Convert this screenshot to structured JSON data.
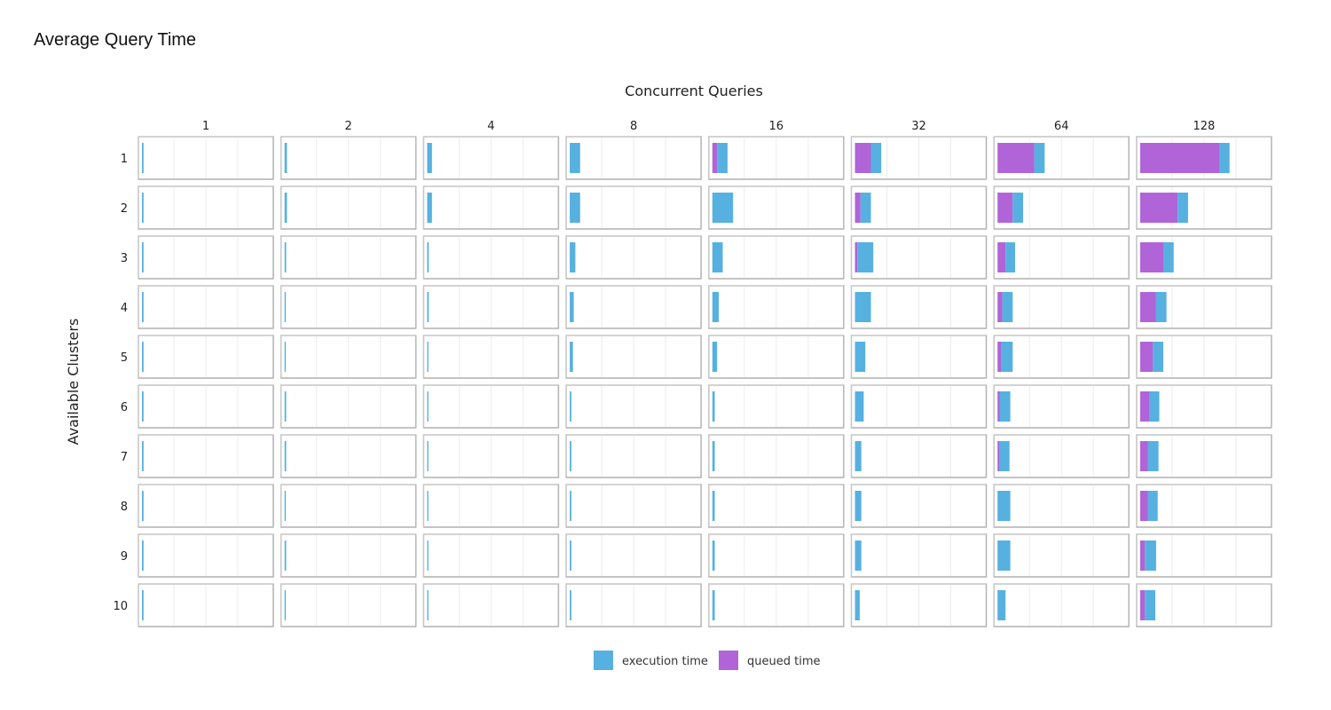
{
  "page": {
    "title": "Average Query Time"
  },
  "chart_data": {
    "type": "bar",
    "orientation": "horizontal",
    "stacked": true,
    "faceted": true,
    "title": "",
    "facet_column_label": "Concurrent Queries",
    "facet_row_label": "Available Clusters",
    "columns": [
      "1",
      "2",
      "4",
      "8",
      "16",
      "32",
      "64",
      "128"
    ],
    "rows": [
      "1",
      "2",
      "3",
      "4",
      "5",
      "6",
      "7",
      "8",
      "9",
      "10"
    ],
    "xlim": [
      0,
      16
    ],
    "grid": true,
    "legend_position": "bottom",
    "series": [
      {
        "name": "execution time",
        "color": "#56b1e0",
        "values": [
          [
            0.2,
            0.3,
            0.6,
            1.3,
            1.3,
            1.3,
            1.3,
            1.3
          ],
          [
            0.2,
            0.3,
            0.6,
            1.3,
            2.6,
            1.3,
            1.3,
            1.3
          ],
          [
            0.2,
            0.2,
            0.2,
            0.7,
            1.3,
            2.0,
            1.2,
            1.3
          ],
          [
            0.2,
            0.1,
            0.2,
            0.5,
            0.8,
            2.0,
            1.3,
            1.3
          ],
          [
            0.2,
            0.1,
            0.1,
            0.4,
            0.6,
            1.3,
            1.4,
            1.3
          ],
          [
            0.2,
            0.2,
            0.1,
            0.2,
            0.3,
            1.1,
            1.3,
            1.2
          ],
          [
            0.2,
            0.2,
            0.1,
            0.2,
            0.3,
            0.8,
            1.3,
            1.3
          ],
          [
            0.2,
            0.1,
            0.1,
            0.2,
            0.3,
            0.8,
            1.6,
            1.2
          ],
          [
            0.2,
            0.2,
            0.1,
            0.2,
            0.3,
            0.8,
            1.6,
            1.4
          ],
          [
            0.2,
            0.1,
            0.1,
            0.2,
            0.3,
            0.6,
            1.0,
            1.3
          ]
        ]
      },
      {
        "name": "queued time",
        "color": "#b064d8",
        "values": [
          [
            0,
            0,
            0,
            0,
            0.6,
            2.0,
            4.6,
            9.9
          ],
          [
            0,
            0,
            0,
            0,
            0,
            0.7,
            1.9,
            4.7
          ],
          [
            0,
            0,
            0,
            0,
            0,
            0.3,
            1.0,
            2.9
          ],
          [
            0,
            0,
            0,
            0,
            0,
            0,
            0.6,
            2.0
          ],
          [
            0,
            0,
            0,
            0,
            0,
            0,
            0.5,
            1.6
          ],
          [
            0,
            0,
            0,
            0,
            0,
            0,
            0.3,
            1.2
          ],
          [
            0,
            0,
            0,
            0,
            0,
            0,
            0.2,
            1.0
          ],
          [
            0,
            0,
            0,
            0,
            0,
            0,
            0,
            1.0
          ],
          [
            0,
            0,
            0,
            0,
            0,
            0,
            0,
            0.6
          ],
          [
            0,
            0,
            0,
            0,
            0,
            0,
            0,
            0.6
          ]
        ]
      }
    ]
  }
}
